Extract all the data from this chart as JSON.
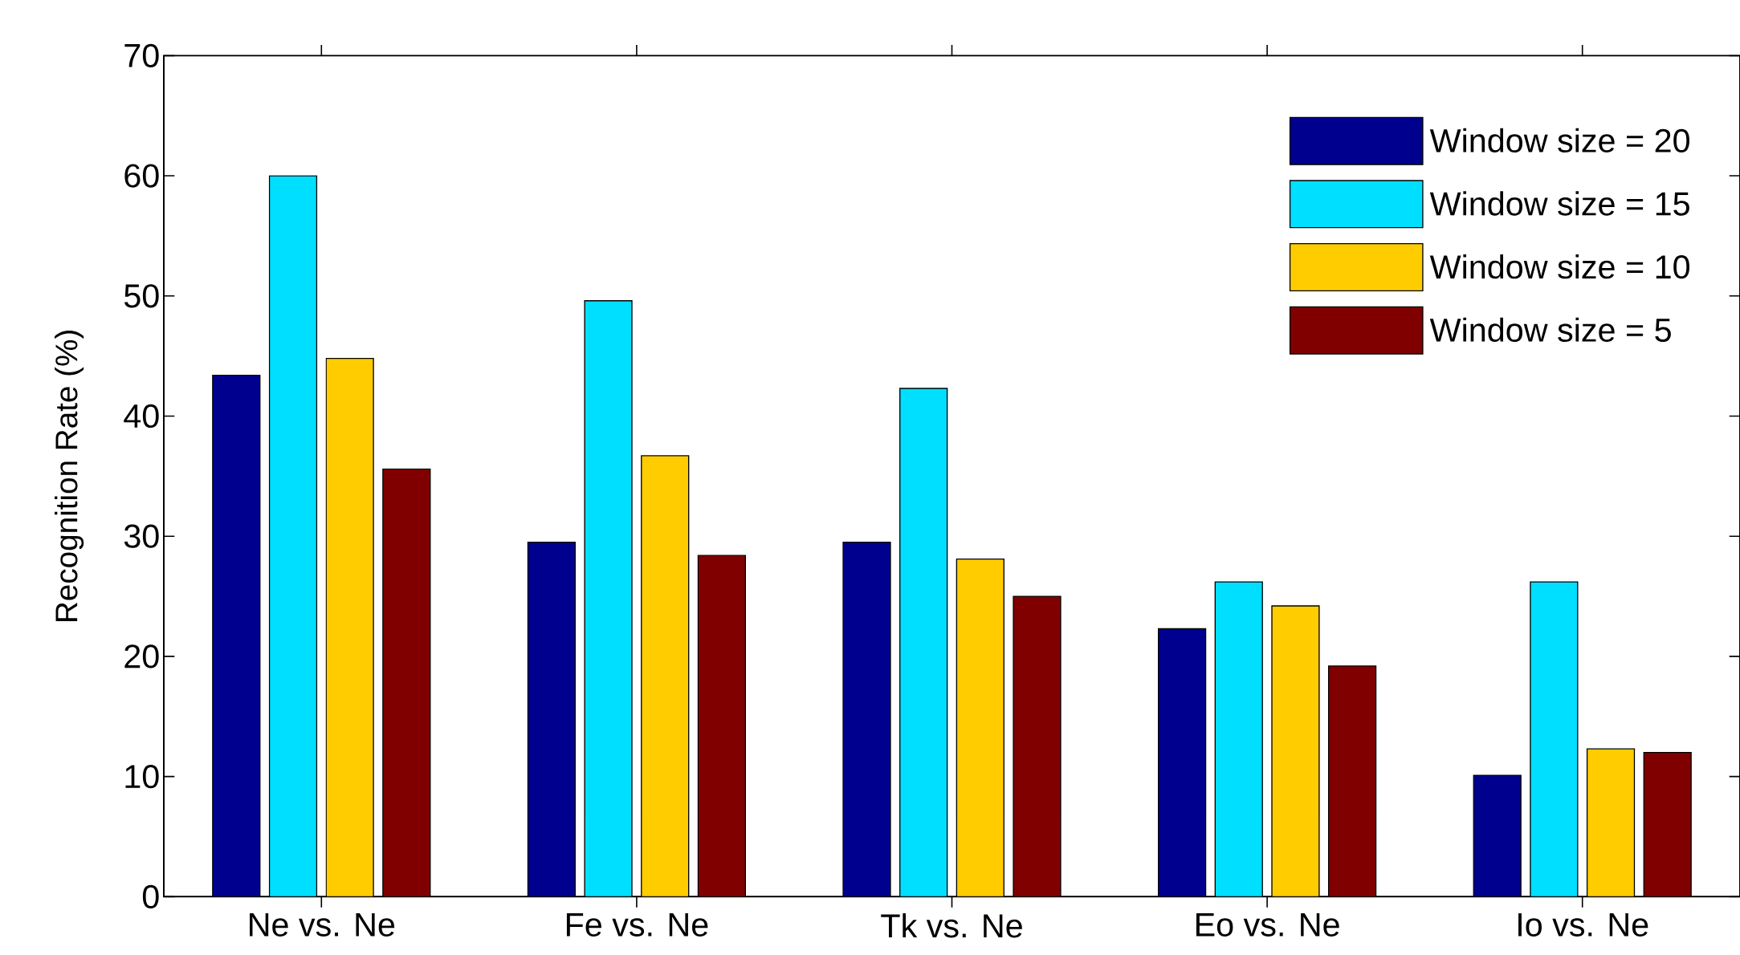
{
  "chart_data": {
    "type": "bar",
    "ylabel": "Recognition Rate (%)",
    "categories": [
      "Ne vs. Ne",
      "Fe vs. Ne",
      "Tk vs. Ne",
      "Eo vs. Ne",
      "Io vs. Ne"
    ],
    "series": [
      {
        "name": "Window size = 20",
        "color": "#00008f",
        "values": [
          43.4,
          29.5,
          29.5,
          22.3,
          10.1
        ]
      },
      {
        "name": "Window size = 15",
        "color": "#00dfff",
        "values": [
          60.0,
          49.6,
          42.3,
          26.2,
          26.2
        ]
      },
      {
        "name": "Window size = 10",
        "color": "#ffcc00",
        "values": [
          44.8,
          36.7,
          28.1,
          24.2,
          12.3
        ]
      },
      {
        "name": "Window size = 5",
        "color": "#800000",
        "values": [
          35.6,
          28.4,
          25.0,
          19.2,
          12.0
        ]
      }
    ],
    "ylim": [
      0,
      70
    ],
    "yticks": [
      0,
      10,
      20,
      30,
      40,
      50,
      60,
      70
    ],
    "grid": false,
    "legend": "top right"
  }
}
